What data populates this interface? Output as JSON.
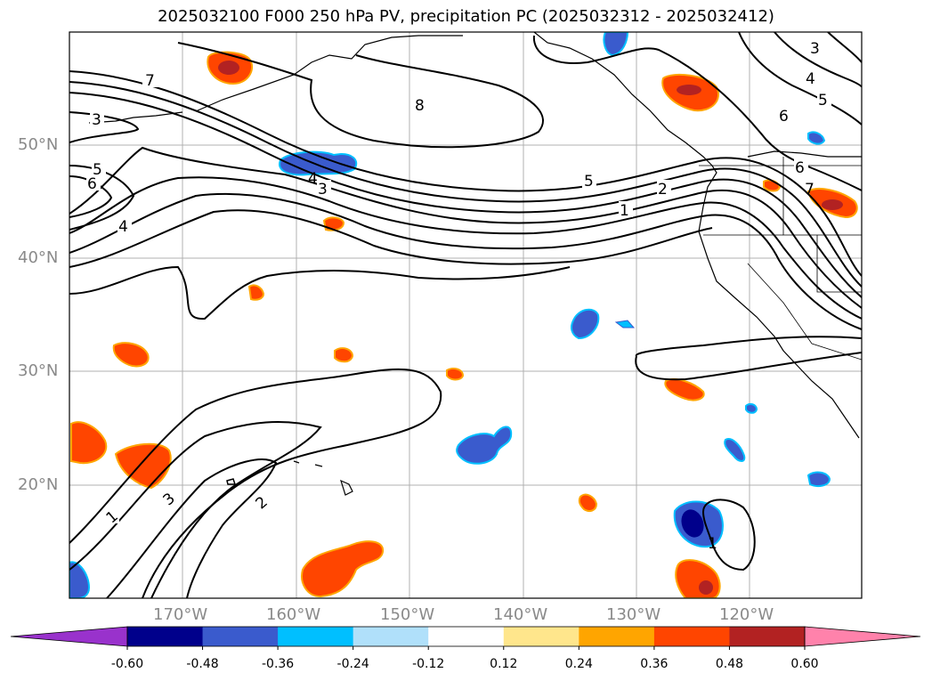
{
  "title": "2025032100 F000 250 hPa PV, precipitation PC (2025032312 - 2025032412)",
  "map": {
    "lat_labels": [
      "50°N",
      "40°N",
      "30°N",
      "20°N"
    ],
    "lon_labels": [
      "170°W",
      "160°W",
      "150°W",
      "140°W",
      "130°W",
      "120°W"
    ],
    "contour_labels": [
      "7",
      "8",
      "3",
      "5",
      "6",
      "4",
      "4",
      "3",
      "5",
      "2",
      "1",
      "4",
      "5",
      "6",
      "3",
      "6",
      "7",
      "1",
      "3",
      "2",
      "1"
    ]
  },
  "colorbar": {
    "ticks": [
      "-0.60",
      "-0.48",
      "-0.36",
      "-0.24",
      "-0.12",
      "0.12",
      "0.24",
      "0.36",
      "0.48",
      "0.60"
    ],
    "colors": [
      "#9932cc",
      "#00008b",
      "#3a5bcd",
      "#00bfff",
      "#b0e0fa",
      "#ffffff",
      "#ffe68c",
      "#ffa500",
      "#ff4500",
      "#b22222",
      "#ff82ab"
    ]
  }
}
